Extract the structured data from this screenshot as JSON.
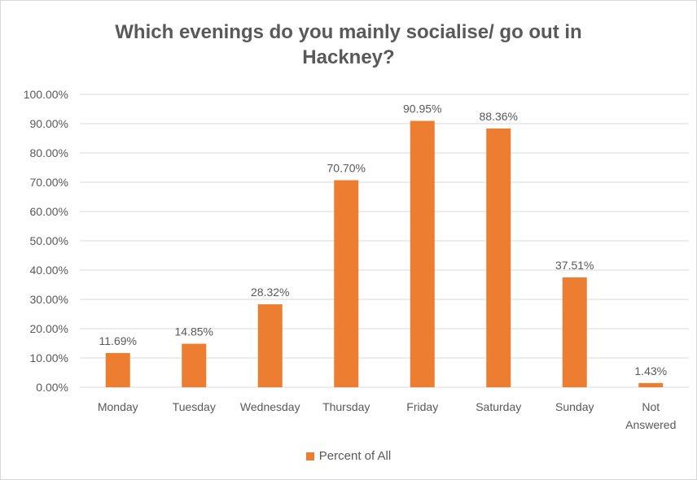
{
  "chart_data": {
    "type": "bar",
    "title_lines": [
      "Which evenings do you mainly socialise/ go out in",
      "Hackney?"
    ],
    "categories": [
      "Monday",
      "Tuesday",
      "Wednesday",
      "Thursday",
      "Friday",
      "Saturday",
      "Sunday",
      "Not Answered"
    ],
    "series": [
      {
        "name": "Percent of All",
        "values": [
          11.69,
          14.85,
          28.32,
          70.7,
          90.95,
          88.36,
          37.51,
          1.43
        ]
      }
    ],
    "data_labels": [
      "11.69%",
      "14.85%",
      "28.32%",
      "70.70%",
      "90.95%",
      "88.36%",
      "37.51%",
      "1.43%"
    ],
    "y_ticks": [
      "0.00%",
      "10.00%",
      "20.00%",
      "30.00%",
      "40.00%",
      "50.00%",
      "60.00%",
      "70.00%",
      "80.00%",
      "90.00%",
      "100.00%"
    ],
    "ylim": [
      0,
      100
    ],
    "grid": true,
    "legend_position": "bottom",
    "bar_color": "#ED7D31",
    "grid_color": "#d9d9d9",
    "text_color": "#595959"
  }
}
